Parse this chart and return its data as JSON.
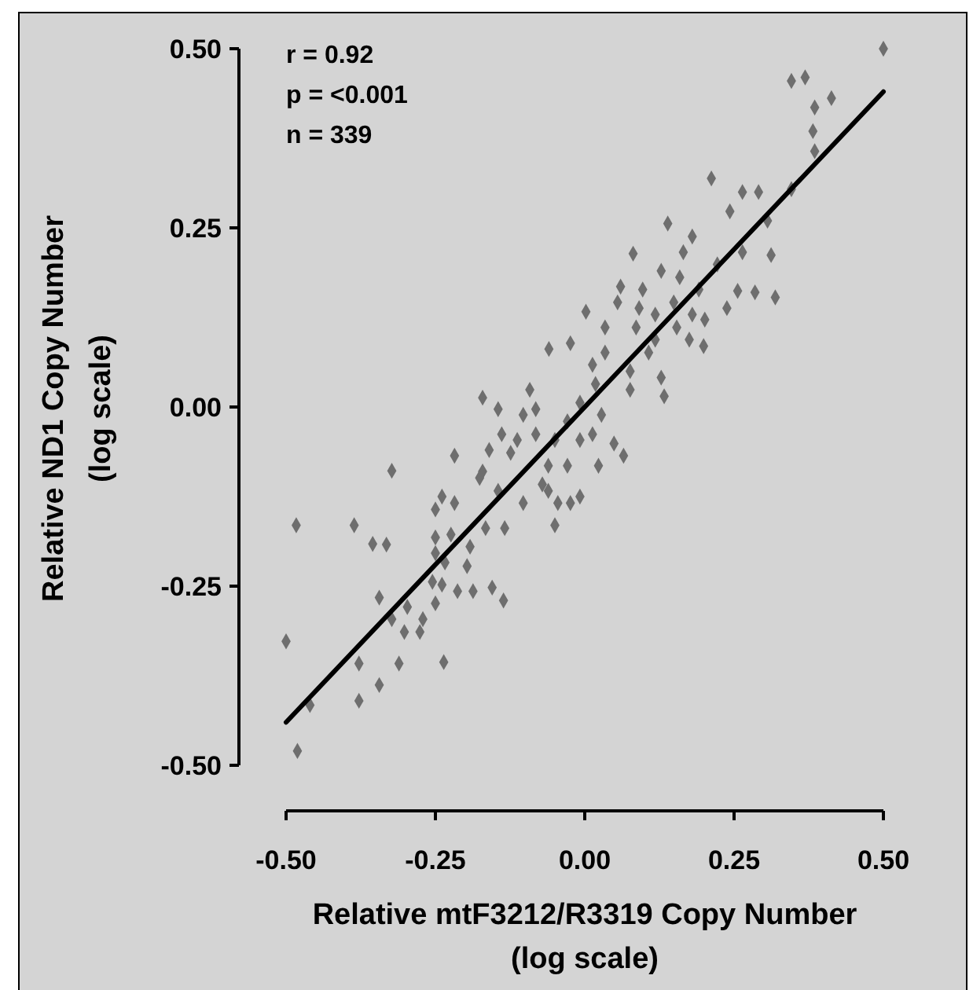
{
  "chart_data": {
    "type": "scatter",
    "xlabel": "Relative mtF3212/R3319 Copy Number\n(log scale)",
    "ylabel": "Relative ND1 Copy Number\n(log scale)",
    "xlim": [
      -0.5,
      0.5
    ],
    "ylim": [
      -0.5,
      0.5
    ],
    "xticks": [
      {
        "value": -0.5,
        "label": "-0.50"
      },
      {
        "value": -0.25,
        "label": "-0.25"
      },
      {
        "value": 0,
        "label": "0.00"
      },
      {
        "value": 0.25,
        "label": "0.25"
      },
      {
        "value": 0.5,
        "label": "0.50"
      }
    ],
    "yticks": [
      {
        "value": -0.5,
        "label": "-0.50"
      },
      {
        "value": -0.25,
        "label": "-0.25"
      },
      {
        "value": 0,
        "label": "0.00"
      },
      {
        "value": 0.25,
        "label": "0.25"
      },
      {
        "value": 0.5,
        "label": "0.50"
      }
    ],
    "grid": false,
    "annotations": [
      "r =  0.92",
      "p = <0.001",
      "n = 339"
    ],
    "series": [
      {
        "color": "#6e6e6e",
        "marker": "diamond",
        "x": [
          0.5,
          0.346,
          0.369,
          0.385,
          0.413,
          0.382,
          0.385,
          0.346,
          0.212,
          0.081,
          0.264,
          0.291,
          0.243,
          0.306,
          0.139,
          0.18,
          0.165,
          0.312,
          0.319,
          0.285,
          0.256,
          0.238,
          0.264,
          0.222,
          0.201,
          0.199,
          0.175,
          0.128,
          0.097,
          0.06,
          0.002,
          -0.024,
          -0.06,
          0.133,
          0.065,
          0.049,
          0.118,
          0.149,
          0.18,
          0.034,
          0.076,
          0.107,
          0.018,
          -0.008,
          -0.029,
          -0.05,
          -0.061,
          -0.05,
          -0.008,
          -0.024,
          -0.071,
          -0.092,
          -0.103,
          -0.082,
          -0.171,
          -0.145,
          -0.139,
          -0.16,
          -0.124,
          -0.171,
          -0.145,
          -0.103,
          -0.134,
          -0.218,
          -0.323,
          -0.239,
          -0.218,
          -0.25,
          -0.25,
          -0.224,
          -0.192,
          -0.166,
          -0.197,
          -0.187,
          -0.155,
          -0.136,
          -0.25,
          -0.234,
          -0.239,
          -0.213,
          -0.255,
          -0.483,
          -0.386,
          -0.355,
          -0.332,
          -0.344,
          -0.323,
          -0.297,
          -0.302,
          -0.276,
          -0.271,
          -0.25,
          -0.378,
          -0.311,
          -0.236,
          -0.344,
          -0.378,
          -0.5,
          -0.46,
          -0.481,
          0.013,
          0.034,
          0.086,
          0.118,
          0.076,
          0.128,
          0.028,
          0.013,
          -0.008,
          -0.029,
          0.023,
          -0.061,
          -0.045,
          0.159,
          0.191,
          0.154,
          0.055,
          0.091,
          -0.082,
          -0.113,
          -0.176
        ],
        "values": [
          0.5,
          0.455,
          0.46,
          0.418,
          0.431,
          0.385,
          0.357,
          0.304,
          0.319,
          0.214,
          0.3,
          0.3,
          0.273,
          0.26,
          0.256,
          0.238,
          0.216,
          0.212,
          0.153,
          0.16,
          0.162,
          0.138,
          0.216,
          0.199,
          0.122,
          0.085,
          0.094,
          0.19,
          0.164,
          0.168,
          0.133,
          0.089,
          0.081,
          0.015,
          -0.068,
          -0.051,
          0.129,
          0.146,
          0.129,
          0.076,
          0.05,
          0.076,
          0.032,
          0.006,
          -0.02,
          -0.046,
          -0.082,
          -0.165,
          -0.125,
          -0.134,
          -0.108,
          0.024,
          -0.011,
          -0.038,
          0.013,
          -0.003,
          -0.038,
          -0.06,
          -0.064,
          -0.09,
          -0.117,
          -0.134,
          -0.169,
          -0.068,
          -0.089,
          -0.125,
          -0.134,
          -0.143,
          -0.182,
          -0.178,
          -0.195,
          -0.169,
          -0.222,
          -0.257,
          -0.252,
          -0.27,
          -0.204,
          -0.217,
          -0.248,
          -0.257,
          -0.244,
          -0.165,
          -0.165,
          -0.191,
          -0.192,
          -0.266,
          -0.296,
          -0.279,
          -0.314,
          -0.314,
          -0.296,
          -0.274,
          -0.358,
          -0.358,
          -0.356,
          -0.388,
          -0.41,
          -0.327,
          -0.416,
          -0.48,
          0.059,
          0.111,
          0.111,
          0.094,
          0.024,
          0.041,
          -0.011,
          -0.038,
          -0.046,
          -0.082,
          -0.082,
          -0.117,
          -0.134,
          0.181,
          0.164,
          0.111,
          0.146,
          0.138,
          -0.003,
          -0.046,
          -0.099
        ]
      },
      {
        "type": "line",
        "color": "#000000",
        "x": [
          -0.5,
          0.5
        ],
        "values": [
          -0.44,
          0.44
        ],
        "line_style": "solid"
      }
    ]
  }
}
